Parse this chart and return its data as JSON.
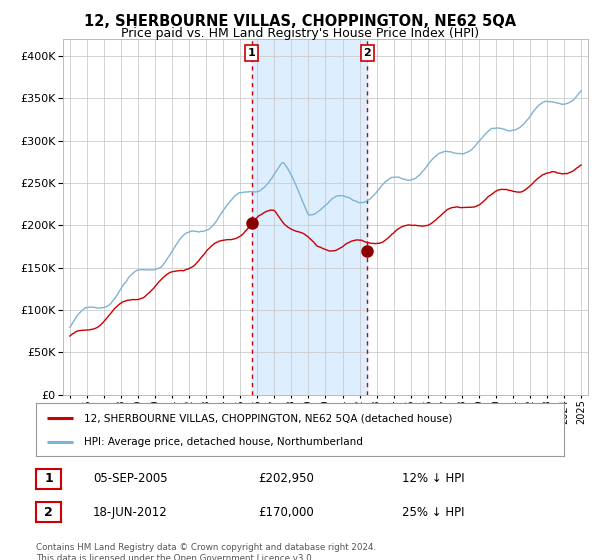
{
  "title": "12, SHERBOURNE VILLAS, CHOPPINGTON, NE62 5QA",
  "subtitle": "Price paid vs. HM Land Registry's House Price Index (HPI)",
  "legend_line1": "12, SHERBOURNE VILLAS, CHOPPINGTON, NE62 5QA (detached house)",
  "legend_line2": "HPI: Average price, detached house, Northumberland",
  "transaction1_date": "05-SEP-2005",
  "transaction1_price": 202950,
  "transaction1_label": "12% ↓ HPI",
  "transaction2_date": "18-JUN-2012",
  "transaction2_price": 170000,
  "transaction2_label": "25% ↓ HPI",
  "footnote": "Contains HM Land Registry data © Crown copyright and database right 2024.\nThis data is licensed under the Open Government Licence v3.0.",
  "hpi_color": "#7fb3d3",
  "price_color": "#cc0000",
  "marker_color": "#8b0000",
  "vspan_color": "#ddeeff",
  "vline_color": "#cc0000",
  "bg_color": "#ffffff",
  "grid_color": "#cccccc",
  "ylim": [
    0,
    420000
  ],
  "yticks": [
    0,
    50000,
    100000,
    150000,
    200000,
    250000,
    300000,
    350000,
    400000
  ],
  "transaction1_x": 2005.67,
  "transaction2_x": 2012.46
}
